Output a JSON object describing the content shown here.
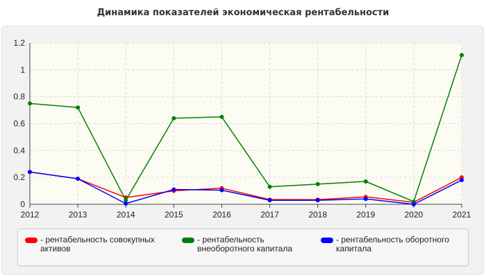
{
  "chart_data": {
    "type": "line",
    "title": "Динамика показателей экономическая рентабельности",
    "xlabel": "",
    "ylabel": "",
    "x": [
      "2012",
      "2013",
      "2014",
      "2015",
      "2016",
      "2017",
      "2018",
      "2019",
      "2020",
      "2021"
    ],
    "ylim": [
      0,
      1.2
    ],
    "yticks": [
      "0",
      "0.2",
      "0.4",
      "0.6",
      "0.8",
      "1",
      "1.2"
    ],
    "grid": true,
    "legend_position": "bottom",
    "series": [
      {
        "name": "- рентабельность совокупных активов",
        "color": "#ff0000",
        "values": [
          0.24,
          0.19,
          0.05,
          0.1,
          0.12,
          0.035,
          0.035,
          0.055,
          0.015,
          0.2
        ]
      },
      {
        "name": "- рентабельность внеоборотного капитала",
        "color": "#008000",
        "values": [
          0.75,
          0.72,
          0.03,
          0.64,
          0.65,
          0.13,
          0.15,
          0.17,
          0.02,
          1.11
        ]
      },
      {
        "name": "- рентабельность оборотного капитала",
        "color": "#0000ff",
        "values": [
          0.24,
          0.19,
          0.005,
          0.11,
          0.105,
          0.03,
          0.03,
          0.04,
          0.0,
          0.18
        ]
      }
    ]
  }
}
